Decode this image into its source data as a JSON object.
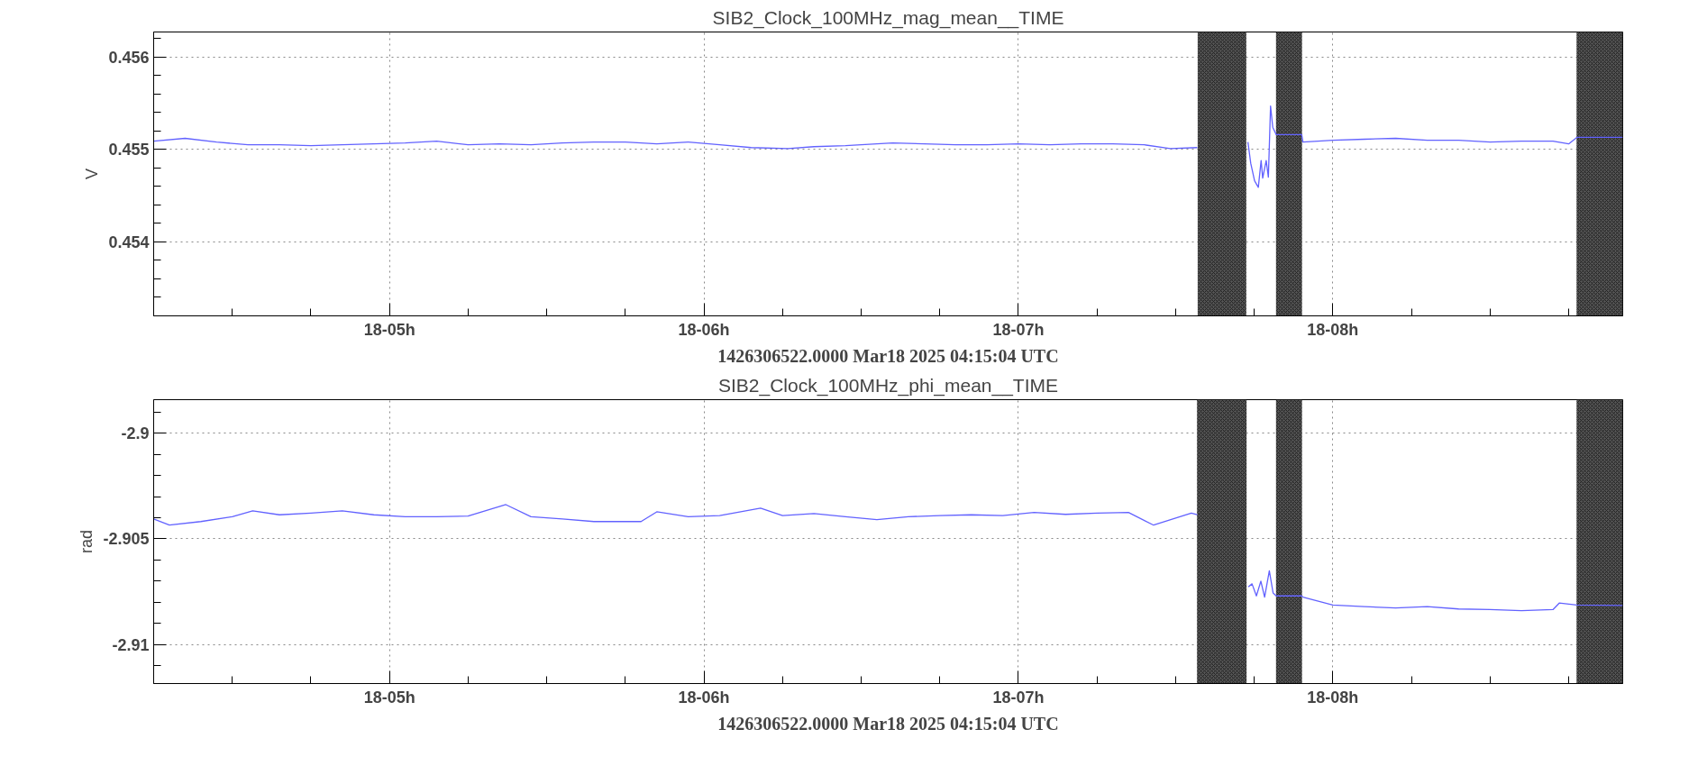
{
  "chart_data": [
    {
      "type": "line",
      "title": "SIB2_Clock_100MHz_mag_mean__TIME",
      "xlabel": "1426306522.0000 Mar18 2025 04:15:04 UTC",
      "ylabel": "V",
      "grid": true,
      "marker": "none",
      "line_style": "solid",
      "xlim": [
        "2025-03-18T04:15",
        "2025-03-18T08:55:19"
      ],
      "ylim": [
        0.4532,
        0.45627
      ],
      "xticks": [
        {
          "value": "2025-03-18T04:30",
          "label": null
        },
        {
          "value": "2025-03-18T04:45",
          "label": null
        },
        {
          "value": "2025-03-18T05:00",
          "label": "18-05h"
        },
        {
          "value": "2025-03-18T05:15",
          "label": null
        },
        {
          "value": "2025-03-18T05:30",
          "label": null
        },
        {
          "value": "2025-03-18T05:45",
          "label": null
        },
        {
          "value": "2025-03-18T06:00",
          "label": "18-06h"
        },
        {
          "value": "2025-03-18T06:15",
          "label": null
        },
        {
          "value": "2025-03-18T06:30",
          "label": null
        },
        {
          "value": "2025-03-18T06:45",
          "label": null
        },
        {
          "value": "2025-03-18T07:00",
          "label": "18-07h"
        },
        {
          "value": "2025-03-18T07:15",
          "label": null
        },
        {
          "value": "2025-03-18T07:30",
          "label": null
        },
        {
          "value": "2025-03-18T07:45",
          "label": null
        },
        {
          "value": "2025-03-18T08:00",
          "label": "18-08h"
        },
        {
          "value": "2025-03-18T08:15",
          "label": null
        },
        {
          "value": "2025-03-18T08:30",
          "label": null
        },
        {
          "value": "2025-03-18T08:45",
          "label": null
        }
      ],
      "yticks": [
        {
          "value": 0.4534,
          "label": null
        },
        {
          "value": 0.4536,
          "label": null
        },
        {
          "value": 0.4538,
          "label": null
        },
        0.454,
        {
          "value": 0.4542,
          "label": null
        },
        {
          "value": 0.4544,
          "label": null
        },
        {
          "value": 0.4546,
          "label": null
        },
        {
          "value": 0.4548,
          "label": null
        },
        0.455,
        {
          "value": 0.4552,
          "label": null
        },
        {
          "value": 0.4554,
          "label": null
        },
        {
          "value": 0.4556,
          "label": null
        },
        {
          "value": 0.4558,
          "label": null
        },
        0.456,
        {
          "value": 0.4562,
          "label": null
        }
      ],
      "bands": [
        {
          "axis": "x",
          "from": "2025-03-18T07:34:16",
          "to": "2025-03-18T07:43:26",
          "color": "#555555"
        },
        {
          "axis": "x",
          "from": "2025-03-18T07:49:12",
          "to": "2025-03-18T07:54:04",
          "color": "#555555"
        },
        {
          "axis": "x",
          "from": "2025-03-18T08:46:34",
          "to": "2025-03-18T08:55:19",
          "color": "#555555"
        }
      ],
      "x": [
        "2025-03-18T04:15",
        "2025-03-18T04:21",
        "2025-03-18T04:27",
        "2025-03-18T04:33",
        "2025-03-18T04:39",
        "2025-03-18T04:45",
        "2025-03-18T04:51",
        "2025-03-18T04:57",
        "2025-03-18T05:03",
        "2025-03-18T05:09",
        "2025-03-18T05:15",
        "2025-03-18T05:21",
        "2025-03-18T05:27",
        "2025-03-18T05:33",
        "2025-03-18T05:39",
        "2025-03-18T05:45",
        "2025-03-18T05:51",
        "2025-03-18T05:57",
        "2025-03-18T06:03",
        "2025-03-18T06:09",
        "2025-03-18T06:16",
        "2025-03-18T06:21",
        "2025-03-18T06:27",
        "2025-03-18T06:30",
        "2025-03-18T06:36",
        "2025-03-18T06:42",
        "2025-03-18T06:48",
        "2025-03-18T06:54",
        "2025-03-18T07:00",
        "2025-03-18T07:06",
        "2025-03-18T07:12",
        "2025-03-18T07:18",
        "2025-03-18T07:24",
        "2025-03-18T07:29",
        "2025-03-18T07:34:08",
        "2025-03-18T07:39",
        "2025-03-18T07:43:48",
        "2025-03-18T07:44:20",
        "2025-03-18T07:45:04",
        "2025-03-18T07:45:47",
        "2025-03-18T07:46:19",
        "2025-03-18T07:46:37",
        "2025-03-18T07:47:17",
        "2025-03-18T07:47:42",
        "2025-03-18T07:48:07",
        "2025-03-18T07:48:32",
        "2025-03-18T07:49:12",
        "2025-03-18T07:54:04",
        "2025-03-18T07:54:18",
        "2025-03-18T08:00",
        "2025-03-18T08:06",
        "2025-03-18T08:12",
        "2025-03-18T08:18",
        "2025-03-18T08:24",
        "2025-03-18T08:30",
        "2025-03-18T08:36",
        "2025-03-18T08:42",
        "2025-03-18T08:45",
        "2025-03-18T08:46:34",
        "2025-03-18T08:55:19"
      ],
      "series": [
        {
          "color": "#6262ff",
          "values": [
            0.45509,
            0.45512,
            0.45508,
            0.45505,
            0.45505,
            0.45504,
            0.45505,
            0.45506,
            0.45507,
            0.45509,
            0.45505,
            0.45506,
            0.45505,
            0.45507,
            0.45508,
            0.45508,
            0.45506,
            0.45508,
            0.45505,
            0.45502,
            0.45501,
            0.45503,
            0.45504,
            0.45505,
            0.45507,
            0.45506,
            0.45505,
            0.45505,
            0.45506,
            0.45505,
            0.45506,
            0.45506,
            0.45505,
            0.45501,
            0.45502,
            null,
            0.45508,
            0.45485,
            0.45466,
            0.45459,
            0.45488,
            0.45469,
            0.45488,
            0.4547,
            0.45547,
            0.45524,
            0.45516,
            0.45516,
            0.45508,
            0.4551,
            0.45511,
            0.45512,
            0.4551,
            0.4551,
            0.45508,
            0.45509,
            0.45509,
            0.45506,
            0.45513,
            0.45513
          ]
        }
      ]
    },
    {
      "type": "line",
      "title": "SIB2_Clock_100MHz_phi_mean__TIME",
      "xlabel": "1426306522.0000 Mar18 2025 04:15:04 UTC",
      "ylabel": "rad",
      "grid": true,
      "marker": "none",
      "line_style": "solid",
      "xlim": [
        "2025-03-18T04:15",
        "2025-03-18T08:55:19"
      ],
      "ylim": [
        -2.91185,
        -2.89841
      ],
      "xticks": [
        {
          "value": "2025-03-18T04:30",
          "label": null
        },
        {
          "value": "2025-03-18T04:45",
          "label": null
        },
        {
          "value": "2025-03-18T05:00",
          "label": "18-05h"
        },
        {
          "value": "2025-03-18T05:15",
          "label": null
        },
        {
          "value": "2025-03-18T05:30",
          "label": null
        },
        {
          "value": "2025-03-18T05:45",
          "label": null
        },
        {
          "value": "2025-03-18T06:00",
          "label": "18-06h"
        },
        {
          "value": "2025-03-18T06:15",
          "label": null
        },
        {
          "value": "2025-03-18T06:30",
          "label": null
        },
        {
          "value": "2025-03-18T06:45",
          "label": null
        },
        {
          "value": "2025-03-18T07:00",
          "label": "18-07h"
        },
        {
          "value": "2025-03-18T07:15",
          "label": null
        },
        {
          "value": "2025-03-18T07:30",
          "label": null
        },
        {
          "value": "2025-03-18T07:45",
          "label": null
        },
        {
          "value": "2025-03-18T08:00",
          "label": "18-08h"
        },
        {
          "value": "2025-03-18T08:15",
          "label": null
        },
        {
          "value": "2025-03-18T08:30",
          "label": null
        },
        {
          "value": "2025-03-18T08:45",
          "label": null
        }
      ],
      "yticks": [
        {
          "value": -2.911,
          "label": null
        },
        -2.91,
        {
          "value": -2.909,
          "label": null
        },
        {
          "value": -2.908,
          "label": null
        },
        {
          "value": -2.907,
          "label": null
        },
        {
          "value": -2.906,
          "label": null
        },
        -2.905,
        {
          "value": -2.904,
          "label": null
        },
        {
          "value": -2.903,
          "label": null
        },
        {
          "value": -2.902,
          "label": null
        },
        {
          "value": -2.901,
          "label": null
        },
        -2.9,
        {
          "value": -2.899,
          "label": null
        }
      ],
      "bands": [
        {
          "axis": "x",
          "from": "2025-03-18T07:34:08",
          "to": "2025-03-18T07:43:30",
          "color": "#555555"
        },
        {
          "axis": "x",
          "from": "2025-03-18T07:49:12",
          "to": "2025-03-18T07:54:04",
          "color": "#555555"
        },
        {
          "axis": "x",
          "from": "2025-03-18T08:46:34",
          "to": "2025-03-18T08:55:19",
          "color": "#555555"
        }
      ],
      "x": [
        "2025-03-18T04:15",
        "2025-03-18T04:18",
        "2025-03-18T04:24",
        "2025-03-18T04:30",
        "2025-03-18T04:33:54",
        "2025-03-18T04:39",
        "2025-03-18T04:45",
        "2025-03-18T04:51",
        "2025-03-18T04:57",
        "2025-03-18T05:03",
        "2025-03-18T05:09",
        "2025-03-18T05:15",
        "2025-03-18T05:22:12",
        "2025-03-18T05:27",
        "2025-03-18T05:33",
        "2025-03-18T05:39",
        "2025-03-18T05:48",
        "2025-03-18T05:51",
        "2025-03-18T05:57",
        "2025-03-18T06:03",
        "2025-03-18T06:10:48",
        "2025-03-18T06:15",
        "2025-03-18T06:21",
        "2025-03-18T06:27",
        "2025-03-18T06:33",
        "2025-03-18T06:39",
        "2025-03-18T06:45",
        "2025-03-18T06:51",
        "2025-03-18T06:57",
        "2025-03-18T07:03",
        "2025-03-18T07:09",
        "2025-03-18T07:15",
        "2025-03-18T07:21",
        "2025-03-18T07:25:48",
        "2025-03-18T07:33",
        "2025-03-18T07:34:08",
        "2025-03-18T07:39",
        "2025-03-18T07:43:52",
        "2025-03-18T07:44:35",
        "2025-03-18T07:45:25",
        "2025-03-18T07:46:16",
        "2025-03-18T07:46:59",
        "2025-03-18T07:47:53",
        "2025-03-18T07:48:36",
        "2025-03-18T07:49:12",
        "2025-03-18T07:54:04",
        "2025-03-18T07:54:18",
        "2025-03-18T08:00",
        "2025-03-18T08:06",
        "2025-03-18T08:12",
        "2025-03-18T08:18",
        "2025-03-18T08:24",
        "2025-03-18T08:30",
        "2025-03-18T08:36",
        "2025-03-18T08:42",
        "2025-03-18T08:43:12",
        "2025-03-18T08:46:34",
        "2025-03-18T08:55:19"
      ],
      "series": [
        {
          "color": "#6262ff",
          "values": [
            -2.90406,
            -2.90435,
            -2.90418,
            -2.90395,
            -2.90367,
            -2.90386,
            -2.90378,
            -2.90367,
            -2.90386,
            -2.90395,
            -2.90395,
            -2.90392,
            -2.90338,
            -2.90395,
            -2.90406,
            -2.90418,
            -2.90418,
            -2.90372,
            -2.90395,
            -2.9039,
            -2.90355,
            -2.9039,
            -2.9038,
            -2.90395,
            -2.90409,
            -2.90395,
            -2.9039,
            -2.90386,
            -2.9039,
            -2.90375,
            -2.90384,
            -2.90378,
            -2.90375,
            -2.90435,
            -2.90378,
            -2.90386,
            null,
            -2.90727,
            -2.90713,
            -2.9077,
            -2.907,
            -2.90776,
            -2.90651,
            -2.90756,
            -2.9077,
            -2.9077,
            -2.90776,
            -2.90813,
            -2.90821,
            -2.90827,
            -2.90821,
            -2.90832,
            -2.90835,
            -2.9084,
            -2.90835,
            -2.90804,
            -2.90813,
            -2.90815
          ]
        }
      ]
    }
  ]
}
